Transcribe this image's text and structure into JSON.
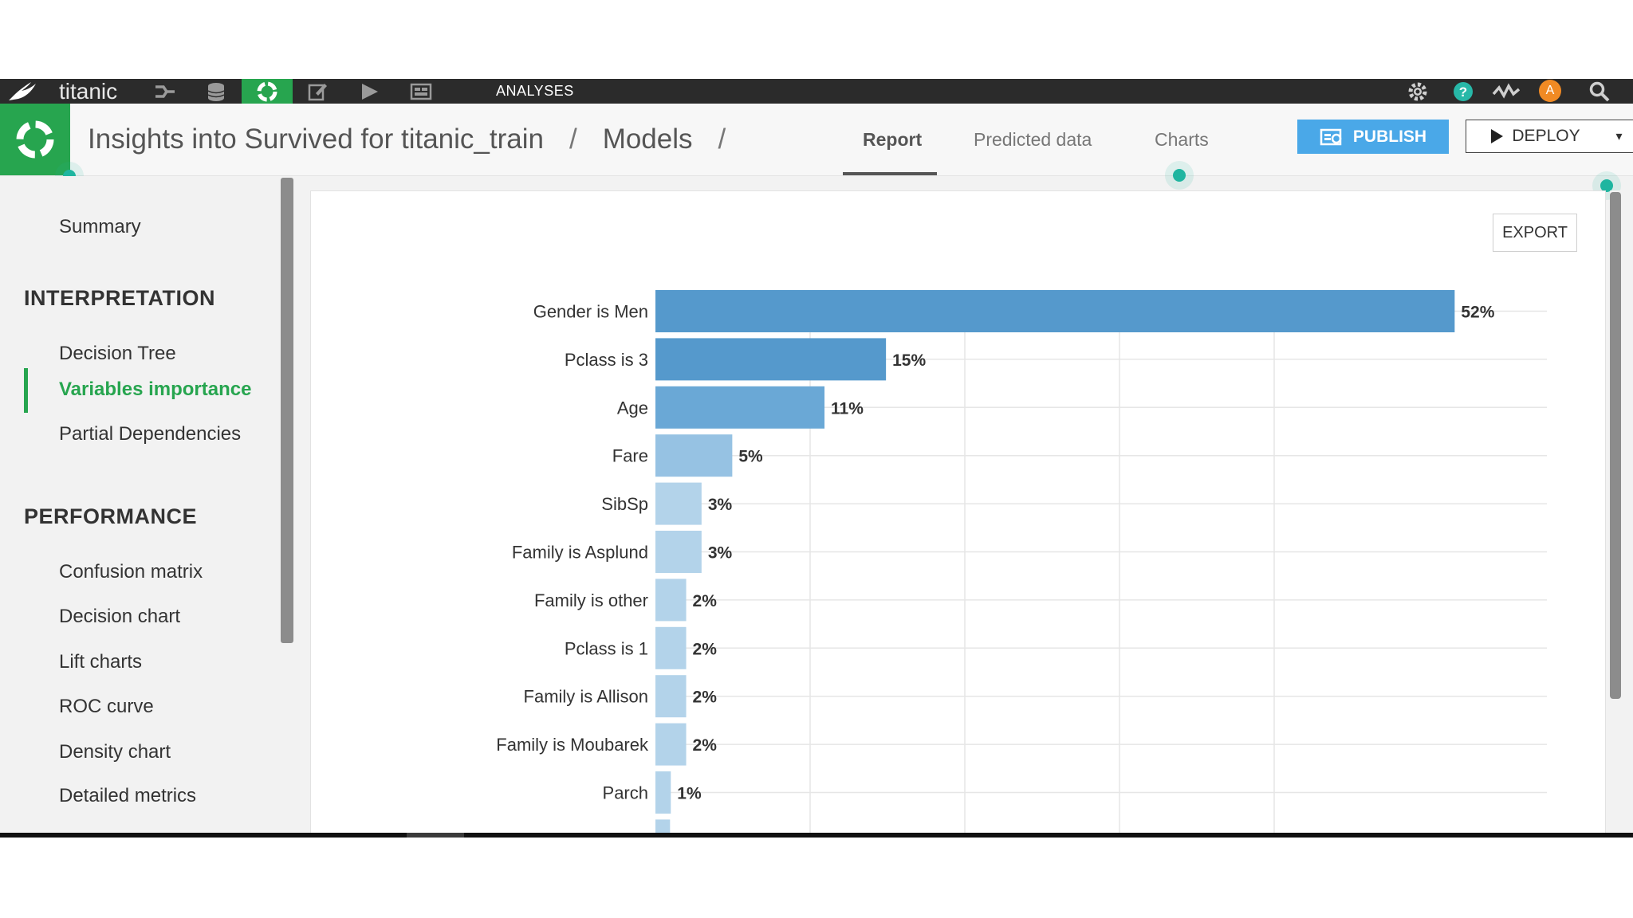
{
  "topbar": {
    "project": "titanic",
    "analyses_label": "ANALYSES",
    "icons": [
      "flow-icon",
      "datasets-icon",
      "lab-icon",
      "notebook-icon",
      "scenario-icon",
      "dashboard-icon",
      "settings-icon",
      "help-icon",
      "activity-icon",
      "search-icon"
    ],
    "avatar_initial": "A",
    "colors": {
      "bar": "#2b2b2b",
      "active": "#27a54f",
      "avatar": "#f08a24"
    }
  },
  "header": {
    "breadcrumb": [
      "Insights into Survived for titanic_train",
      "Models"
    ],
    "separator": "/",
    "tabs": [
      {
        "label": "Report",
        "active": true
      },
      {
        "label": "Predicted data",
        "active": false
      },
      {
        "label": "Charts",
        "active": false
      }
    ],
    "publish_label": "PUBLISH",
    "deploy_label": "DEPLOY"
  },
  "sidebar": {
    "summary": "Summary",
    "sections": [
      {
        "title": "INTERPRETATION",
        "items": [
          {
            "label": "Decision Tree",
            "active": false
          },
          {
            "label": "Variables importance",
            "active": true
          },
          {
            "label": "Partial Dependencies",
            "active": false
          }
        ]
      },
      {
        "title": "PERFORMANCE",
        "items": [
          {
            "label": "Confusion matrix",
            "active": false
          },
          {
            "label": "Decision chart",
            "active": false
          },
          {
            "label": "Lift charts",
            "active": false
          },
          {
            "label": "ROC curve",
            "active": false
          },
          {
            "label": "Density chart",
            "active": false
          },
          {
            "label": "Detailed metrics",
            "active": false
          }
        ]
      }
    ]
  },
  "main": {
    "export_label": "EXPORT"
  },
  "chart_data": {
    "type": "bar",
    "orientation": "horizontal",
    "categories": [
      "Gender is Men",
      "Pclass is 3",
      "Age",
      "Fare",
      "SibSp",
      "Family is Asplund",
      "Family is other",
      "Pclass is 1",
      "Family is Allison",
      "Family is Moubarek",
      "Parch"
    ],
    "values": [
      52,
      15,
      11,
      5,
      3,
      3,
      2,
      2,
      2,
      2,
      1
    ],
    "labels": [
      "52%",
      "15%",
      "11%",
      "5%",
      "3%",
      "3%",
      "2%",
      "2%",
      "2%",
      "2%",
      "1%"
    ],
    "unit": "%",
    "xlim": [
      0,
      58
    ],
    "grid": true,
    "colors": {
      "dark": "#5599cc",
      "light": "#b3d3ea"
    }
  }
}
